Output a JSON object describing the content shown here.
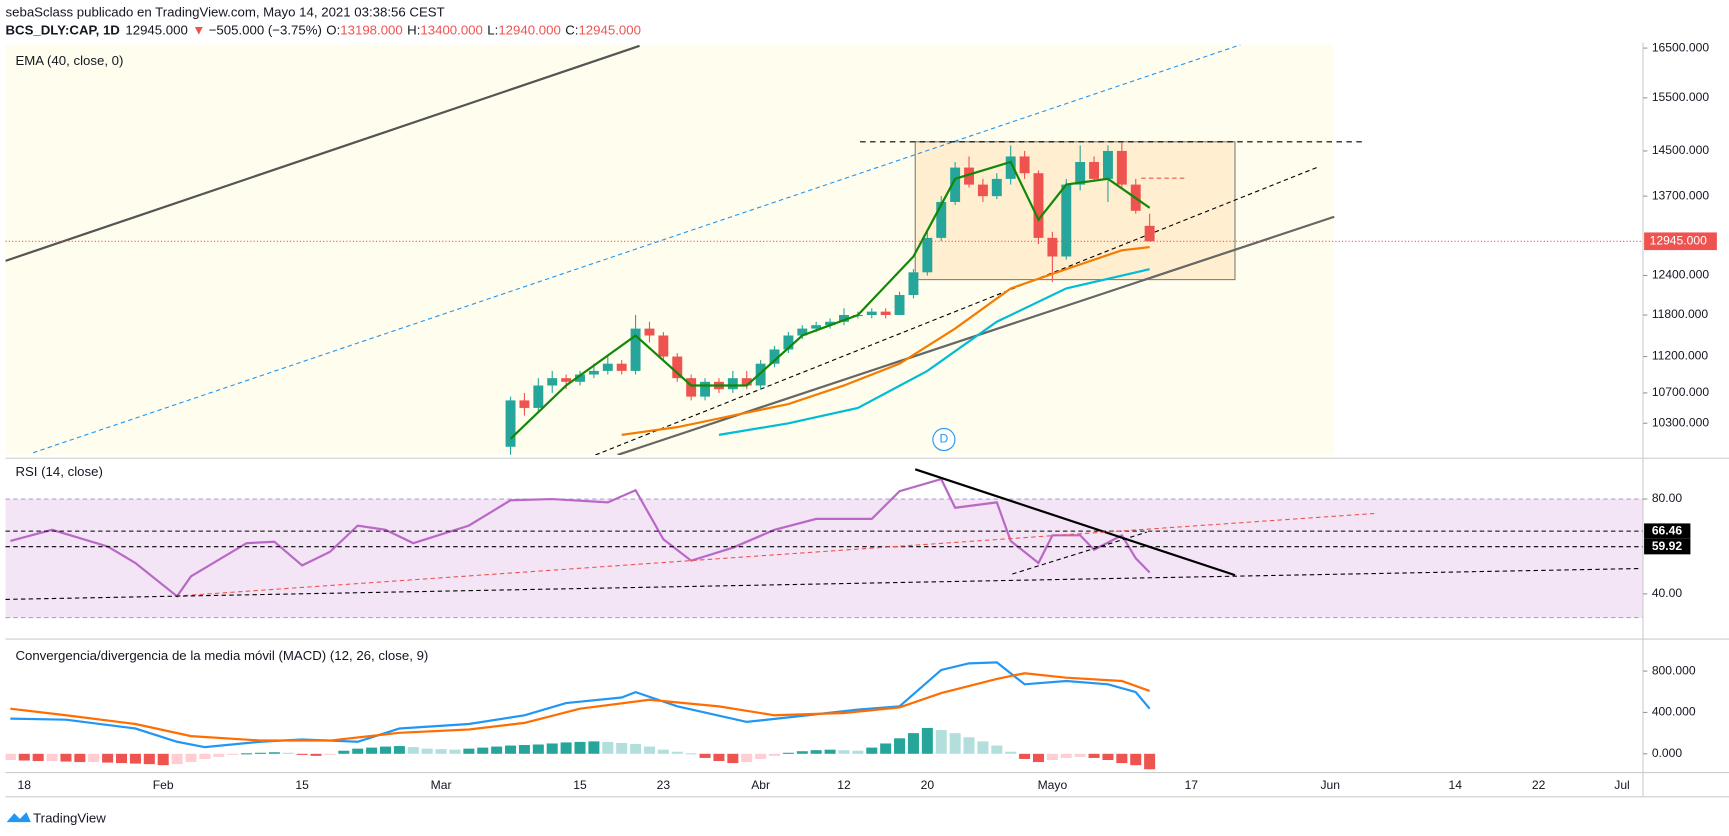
{
  "header": {
    "author_line": "sebaSclass publicado en TradingView.com, Mayo 14, 2021 03:38:56 CEST",
    "symbol": "BCS_DLY:CAP, 1D",
    "price": "12945.000",
    "change_arrow": "▼",
    "change": "−505.000 (−3.75%)",
    "o_label": "O:",
    "o": "13198.000",
    "h_label": "H:",
    "h": "13400.000",
    "l_label": "L:",
    "l": "12940.000",
    "c_label": "C:",
    "c": "12945.000"
  },
  "footer": "TradingView",
  "marker": "D",
  "chart_data": [
    {
      "type": "candlestick",
      "title": "EMA (40, close, 0)",
      "log_scale": true,
      "xlim": [
        -36.35,
        81.51
      ],
      "ylim": [
        9898,
        16569
      ],
      "xticks": [
        {
          "value": -35,
          "label": "18"
        },
        {
          "value": -25,
          "label": "Feb"
        },
        {
          "value": -15,
          "label": "15"
        },
        {
          "value": -5,
          "label": "Mar"
        },
        {
          "value": 5,
          "label": "15"
        },
        {
          "value": 11,
          "label": "23"
        },
        {
          "value": 18,
          "label": "Abr"
        },
        {
          "value": 24,
          "label": "12"
        },
        {
          "value": 30,
          "label": "20"
        },
        {
          "value": 39,
          "label": "Mayo"
        },
        {
          "value": 49,
          "label": "17"
        },
        {
          "value": 59,
          "label": "Jun"
        },
        {
          "value": 68,
          "label": "14"
        },
        {
          "value": 74,
          "label": "22"
        },
        {
          "value": 80,
          "label": "Jul"
        }
      ],
      "yticks": [
        {
          "value": 16500,
          "label": "16500.000"
        },
        {
          "value": 15500,
          "label": "15500.000"
        },
        {
          "value": 14500,
          "label": "14500.000"
        },
        {
          "value": 13700,
          "label": "13700.000"
        },
        {
          "value": 12400,
          "label": "12400.000"
        },
        {
          "value": 11800,
          "label": "11800.000"
        },
        {
          "value": 11200,
          "label": "11200.000"
        },
        {
          "value": 10700,
          "label": "10700.000"
        },
        {
          "value": 10300,
          "label": "10300.000"
        }
      ],
      "last_price_label": "12945.000",
      "up_color": "#26a69a",
      "down_color": "#ef5350",
      "ohlc": [
        [
          10000,
          10650,
          9900,
          10600
        ],
        [
          10600,
          10700,
          10400,
          10500
        ],
        [
          10500,
          10900,
          10450,
          10800
        ],
        [
          10800,
          11000,
          10700,
          10900
        ],
        [
          10900,
          10950,
          10750,
          10850
        ],
        [
          10850,
          11000,
          10800,
          10950
        ],
        [
          10950,
          11100,
          10900,
          11000
        ],
        [
          11000,
          11200,
          10950,
          11100
        ],
        [
          11100,
          11150,
          10950,
          11000
        ],
        [
          11000,
          11800,
          10950,
          11600
        ],
        [
          11600,
          11700,
          11400,
          11500
        ],
        [
          11500,
          11550,
          11150,
          11200
        ],
        [
          11200,
          11250,
          10850,
          10900
        ],
        [
          10900,
          10950,
          10600,
          10650
        ],
        [
          10650,
          10900,
          10600,
          10850
        ],
        [
          10850,
          10900,
          10700,
          10750
        ],
        [
          10750,
          11000,
          10700,
          10900
        ],
        [
          10900,
          11000,
          10750,
          10800
        ],
        [
          10800,
          11150,
          10750,
          11100
        ],
        [
          11100,
          11350,
          11050,
          11300
        ],
        [
          11300,
          11550,
          11250,
          11500
        ],
        [
          11500,
          11650,
          11450,
          11600
        ],
        [
          11600,
          11700,
          11550,
          11650
        ],
        [
          11650,
          11750,
          11600,
          11700
        ],
        [
          11700,
          11900,
          11650,
          11800
        ],
        [
          11800,
          11850,
          11750,
          11800
        ],
        [
          11800,
          11900,
          11750,
          11850
        ],
        [
          11850,
          11900,
          11750,
          11800
        ],
        [
          11800,
          12150,
          11800,
          12100
        ],
        [
          12100,
          12500,
          12050,
          12450
        ],
        [
          12450,
          13100,
          12400,
          13000
        ],
        [
          13000,
          13700,
          12950,
          13600
        ],
        [
          13600,
          14300,
          13550,
          14200
        ],
        [
          14200,
          14400,
          13850,
          13900
        ],
        [
          13900,
          14000,
          13600,
          13700
        ],
        [
          13700,
          14100,
          13650,
          14000
        ],
        [
          14000,
          14600,
          13900,
          14400
        ],
        [
          14400,
          14500,
          14000,
          14100
        ],
        [
          14100,
          14150,
          12900,
          13000
        ],
        [
          13000,
          13100,
          12300,
          12700
        ],
        [
          12700,
          14000,
          12650,
          13900
        ],
        [
          13900,
          14600,
          13800,
          14300
        ],
        [
          14300,
          14400,
          13950,
          14000
        ],
        [
          14000,
          14600,
          13600,
          14500
        ],
        [
          14500,
          14650,
          13850,
          13900
        ],
        [
          13900,
          14000,
          13400,
          13450
        ],
        [
          13198,
          13400,
          12940,
          12945
        ]
      ],
      "series": [
        {
          "color": "#138808",
          "x": [
            0,
            4,
            9,
            13,
            17,
            21,
            25,
            29,
            32,
            36,
            38,
            40,
            43,
            46
          ],
          "values": [
            10100,
            10800,
            11500,
            10800,
            10800,
            11500,
            11800,
            12700,
            14000,
            14300,
            13300,
            13900,
            14000,
            13500
          ]
        },
        {
          "color": "#f57c00",
          "x": [
            8,
            12,
            16,
            20,
            24,
            28,
            32,
            36,
            40,
            44,
            46
          ],
          "values": [
            10150,
            10250,
            10400,
            10550,
            10800,
            11100,
            11600,
            12200,
            12500,
            12800,
            12850
          ]
        },
        {
          "color": "#00bcd4",
          "x": [
            15,
            20,
            25,
            30,
            35,
            40,
            46
          ],
          "values": [
            10150,
            10300,
            10500,
            11000,
            11700,
            12200,
            12500
          ]
        }
      ]
    },
    {
      "type": "line",
      "title": "RSI (14, close)",
      "ylim": [
        21.4,
        95.8
      ],
      "yticks": [
        {
          "value": 80,
          "label": "80.00"
        },
        {
          "value": 40,
          "label": "40.00"
        }
      ],
      "bands": [
        30,
        80
      ],
      "levels": [
        66.46,
        59.92
      ],
      "series": [
        {
          "color": "#ba68c8",
          "x": [
            -36,
            -33,
            -29,
            -27,
            -24,
            -23,
            -19,
            -17,
            -15,
            -13,
            -11,
            -9,
            -7,
            -3,
            0,
            3,
            7,
            9,
            11,
            13,
            16,
            19,
            22,
            26,
            28,
            31,
            32,
            35,
            36,
            38,
            39,
            41,
            42,
            44,
            45,
            46
          ],
          "values": [
            62.3,
            67,
            60,
            53,
            39,
            47.4,
            61.4,
            62,
            52,
            57.7,
            68.8,
            67,
            61.4,
            68.8,
            79.5,
            80,
            78.6,
            83.7,
            63,
            54,
            59.5,
            67,
            71.6,
            71.6,
            83.3,
            88.4,
            76.3,
            78.6,
            62.3,
            53,
            64.7,
            64.7,
            58.6,
            64.7,
            55,
            49
          ]
        }
      ]
    },
    {
      "type": "macd",
      "title": "Convergencia/divergencia de la media móvil (MACD) (12, 26, close, 9)",
      "ylim": [
        -181,
        1099
      ],
      "yticks": [
        {
          "value": 800,
          "label": "800.000"
        },
        {
          "value": 400,
          "label": "400.000"
        },
        {
          "value": 0,
          "label": "0.000"
        }
      ],
      "histogram": {
        "colors": {
          "grow_above": "#26a69a",
          "fall_above": "#b2dfdb",
          "grow_below": "#ffcdd2",
          "fall_below": "#ef5350"
        },
        "x": [
          -36,
          -35,
          -34,
          -33,
          -32,
          -31,
          -30,
          -29,
          -28,
          -27,
          -26,
          -25,
          -24,
          -23,
          -22,
          -21,
          -20,
          -19,
          -18,
          -17,
          -16,
          -15,
          -14,
          -13,
          -12,
          -11,
          -10,
          -9,
          -8,
          -7,
          -6,
          -5,
          -4,
          -3,
          -2,
          -1,
          0,
          1,
          2,
          3,
          4,
          5,
          6,
          7,
          8,
          9,
          10,
          11,
          12,
          13,
          14,
          15,
          16,
          17,
          18,
          19,
          20,
          21,
          22,
          23,
          24,
          25,
          26,
          27,
          28,
          29,
          30,
          31,
          32,
          33,
          34,
          35,
          36,
          37,
          38,
          39,
          40,
          41,
          42,
          43,
          44,
          45,
          46
        ],
        "values": [
          -60,
          -65,
          -70,
          -70,
          -75,
          -80,
          -80,
          -85,
          -90,
          -95,
          -100,
          -110,
          -100,
          -80,
          -50,
          -30,
          -10,
          5,
          10,
          15,
          10,
          -10,
          -20,
          -5,
          30,
          50,
          60,
          70,
          75,
          65,
          50,
          45,
          40,
          50,
          60,
          70,
          80,
          85,
          90,
          100,
          110,
          115,
          120,
          115,
          105,
          95,
          70,
          40,
          20,
          5,
          -40,
          -70,
          -90,
          -80,
          -50,
          -20,
          10,
          25,
          35,
          40,
          35,
          30,
          60,
          100,
          150,
          200,
          250,
          230,
          200,
          160,
          120,
          80,
          20,
          -50,
          -80,
          -60,
          -40,
          -30,
          -40,
          -60,
          -90,
          -110,
          -150
        ]
      },
      "series": [
        {
          "color": "#2196f3",
          "x": [
            -36,
            -32,
            -27,
            -24,
            -22,
            -18,
            -15,
            -11,
            -8,
            -3,
            1,
            4,
            8,
            9,
            12,
            17,
            20,
            25,
            28,
            31,
            33,
            35,
            37,
            40,
            43,
            45,
            46
          ],
          "values": [
            341,
            330,
            245,
            117,
            64,
            117,
            139,
            117,
            245,
            288,
            373,
            491,
            544,
            597,
            459,
            309,
            352,
            427,
            459,
            811,
            875,
            885,
            672,
            704,
            672,
            597,
            437
          ]
        },
        {
          "color": "#ff6d00",
          "x": [
            -36,
            -32,
            -27,
            -23,
            -18,
            -13,
            -8,
            -3,
            1,
            5,
            10,
            15,
            19,
            24,
            28,
            31,
            35,
            37,
            40,
            44,
            46
          ],
          "values": [
            437,
            373,
            288,
            171,
            128,
            128,
            203,
            235,
            299,
            437,
            523,
            459,
            373,
            395,
            448,
            587,
            725,
            779,
            736,
            704,
            608
          ]
        }
      ]
    }
  ]
}
